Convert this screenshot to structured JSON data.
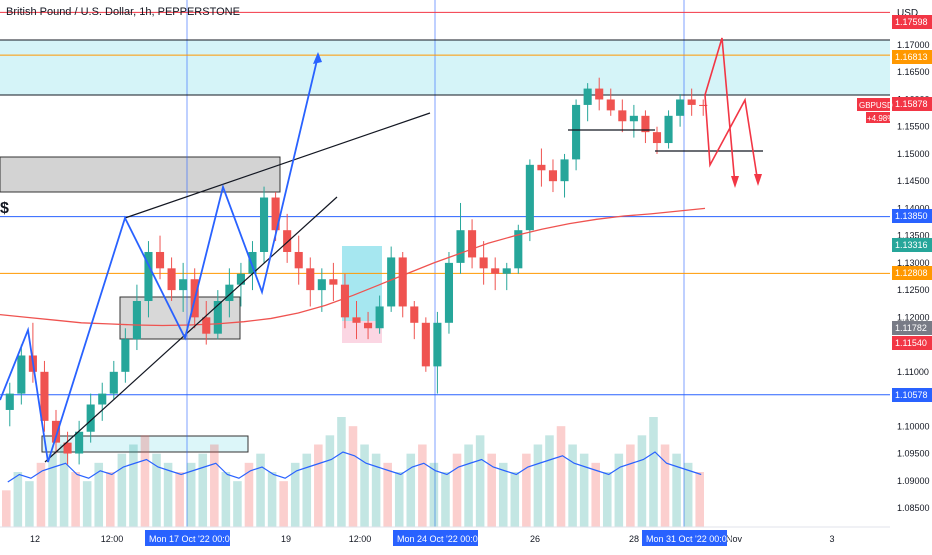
{
  "chart_data": {
    "type": "candlestick",
    "title": "British Pound / U.S. Dollar, 1h, PEPPERSTONE",
    "currency": "USD",
    "symbol_tag": "GBPUSD",
    "last_price": "1.15878",
    "change_pct": "+4.98%",
    "dollar_mark": "$",
    "y_ticks": [
      "1.17000",
      "1.16500",
      "1.16000",
      "1.15500",
      "1.15000",
      "1.14500",
      "1.14000",
      "1.13500",
      "1.13000",
      "1.12500",
      "1.12000",
      "1.11500",
      "1.11000",
      "1.10500",
      "1.10000",
      "1.09500",
      "1.09000",
      "1.08500"
    ],
    "x_labels": [
      "12",
      "12:00",
      "19",
      "12:00",
      "26",
      "28",
      "Nov",
      "3"
    ],
    "x_highlight_labels": [
      "Mon 17 Oct '22  00:00",
      "Mon 24 Oct '22  00:00",
      "Mon 31 Oct '22  00:00"
    ],
    "price_tags": [
      {
        "label": "1.17598",
        "color": "#f23645"
      },
      {
        "label": "1.16813",
        "color": "#ff9800"
      },
      {
        "label": "1.15878",
        "color": "#f23645"
      },
      {
        "label": "1.13850",
        "color": "#2962ff"
      },
      {
        "label": "1.13316",
        "color": "#26a69a"
      },
      {
        "label": "1.12808",
        "color": "#ff9800"
      },
      {
        "label": "1.11782",
        "color": "#787b86"
      },
      {
        "label": "1.11540",
        "color": "#f23645"
      },
      {
        "label": "1.10578",
        "color": "#2962ff"
      }
    ],
    "horizontal_levels": [
      {
        "price": 1.17598,
        "color": "#f23645"
      },
      {
        "price": 1.16813,
        "color": "#ff9800"
      },
      {
        "price": 1.1385,
        "color": "#2962ff"
      },
      {
        "price": 1.12808,
        "color": "#ff9800"
      },
      {
        "price": 1.10578,
        "color": "#2962ff"
      }
    ],
    "colors": {
      "up": "#26a69a",
      "down": "#ef5350",
      "ma": "#ef5350",
      "volume_ma": "#2962ff",
      "zone": "#b2ebf2",
      "blue_path": "#2962ff",
      "red_path": "#f23645"
    },
    "candles": [
      [
        1.103,
        1.108,
        1.1,
        1.106
      ],
      [
        1.106,
        1.115,
        1.104,
        1.113
      ],
      [
        1.113,
        1.119,
        1.108,
        1.11
      ],
      [
        1.11,
        1.112,
        1.099,
        1.101
      ],
      [
        1.101,
        1.103,
        1.095,
        1.097
      ],
      [
        1.097,
        1.099,
        1.093,
        1.095
      ],
      [
        1.095,
        1.101,
        1.093,
        1.099
      ],
      [
        1.099,
        1.106,
        1.097,
        1.104
      ],
      [
        1.104,
        1.108,
        1.101,
        1.106
      ],
      [
        1.106,
        1.112,
        1.105,
        1.11
      ],
      [
        1.11,
        1.118,
        1.108,
        1.116
      ],
      [
        1.116,
        1.126,
        1.114,
        1.123
      ],
      [
        1.123,
        1.134,
        1.12,
        1.132
      ],
      [
        1.132,
        1.135,
        1.127,
        1.129
      ],
      [
        1.129,
        1.131,
        1.123,
        1.125
      ],
      [
        1.125,
        1.13,
        1.121,
        1.127
      ],
      [
        1.127,
        1.129,
        1.118,
        1.12
      ],
      [
        1.12,
        1.123,
        1.115,
        1.117
      ],
      [
        1.117,
        1.125,
        1.116,
        1.123
      ],
      [
        1.123,
        1.129,
        1.12,
        1.126
      ],
      [
        1.126,
        1.13,
        1.122,
        1.128
      ],
      [
        1.128,
        1.134,
        1.125,
        1.132
      ],
      [
        1.132,
        1.144,
        1.13,
        1.142
      ],
      [
        1.142,
        1.143,
        1.134,
        1.136
      ],
      [
        1.136,
        1.139,
        1.13,
        1.132
      ],
      [
        1.132,
        1.135,
        1.126,
        1.129
      ],
      [
        1.129,
        1.131,
        1.122,
        1.125
      ],
      [
        1.125,
        1.129,
        1.121,
        1.127
      ],
      [
        1.127,
        1.13,
        1.123,
        1.126
      ],
      [
        1.126,
        1.128,
        1.118,
        1.12
      ],
      [
        1.12,
        1.123,
        1.116,
        1.119
      ],
      [
        1.119,
        1.121,
        1.116,
        1.118
      ],
      [
        1.118,
        1.124,
        1.117,
        1.122
      ],
      [
        1.122,
        1.133,
        1.121,
        1.131
      ],
      [
        1.131,
        1.132,
        1.12,
        1.122
      ],
      [
        1.122,
        1.123,
        1.116,
        1.119
      ],
      [
        1.119,
        1.12,
        1.11,
        1.111
      ],
      [
        1.111,
        1.121,
        1.106,
        1.119
      ],
      [
        1.119,
        1.132,
        1.117,
        1.13
      ],
      [
        1.13,
        1.141,
        1.128,
        1.136
      ],
      [
        1.136,
        1.138,
        1.129,
        1.131
      ],
      [
        1.131,
        1.134,
        1.126,
        1.129
      ],
      [
        1.129,
        1.131,
        1.125,
        1.128
      ],
      [
        1.128,
        1.13,
        1.125,
        1.129
      ],
      [
        1.129,
        1.137,
        1.128,
        1.136
      ],
      [
        1.136,
        1.149,
        1.134,
        1.148
      ],
      [
        1.148,
        1.151,
        1.144,
        1.147
      ],
      [
        1.147,
        1.149,
        1.143,
        1.145
      ],
      [
        1.145,
        1.15,
        1.142,
        1.149
      ],
      [
        1.149,
        1.16,
        1.147,
        1.159
      ],
      [
        1.159,
        1.163,
        1.156,
        1.162
      ],
      [
        1.162,
        1.164,
        1.158,
        1.16
      ],
      [
        1.16,
        1.162,
        1.157,
        1.158
      ],
      [
        1.158,
        1.16,
        1.154,
        1.156
      ],
      [
        1.156,
        1.159,
        1.153,
        1.157
      ],
      [
        1.157,
        1.158,
        1.152,
        1.154
      ],
      [
        1.154,
        1.155,
        1.15,
        1.152
      ],
      [
        1.152,
        1.158,
        1.151,
        1.157
      ],
      [
        1.157,
        1.161,
        1.155,
        1.16
      ],
      [
        1.16,
        1.162,
        1.157,
        1.159
      ],
      [
        1.159,
        1.16,
        1.157,
        1.1588
      ]
    ],
    "ma": [
      1.1205,
      1.12,
      1.1195,
      1.119,
      1.1188,
      1.1186,
      1.1185,
      1.1186,
      1.1188,
      1.1192,
      1.1198,
      1.1208,
      1.1222,
      1.124,
      1.126,
      1.128,
      1.13,
      1.1318,
      1.1336,
      1.135,
      1.1362,
      1.1372,
      1.138,
      1.1386,
      1.139,
      1.1395,
      1.14
    ],
    "volume": [
      4,
      6,
      5,
      7,
      8,
      9,
      6,
      5,
      7,
      6,
      8,
      9,
      10,
      8,
      7,
      6,
      7,
      8,
      9,
      6,
      5,
      7,
      8,
      6,
      5,
      7,
      8,
      9,
      10,
      12,
      11,
      9,
      8,
      7,
      6,
      8,
      9,
      7,
      6,
      8,
      9,
      10,
      8,
      7,
      6,
      8,
      9,
      10,
      11,
      9,
      8,
      7,
      6,
      8,
      9,
      10,
      12,
      9,
      8,
      7,
      6
    ]
  }
}
